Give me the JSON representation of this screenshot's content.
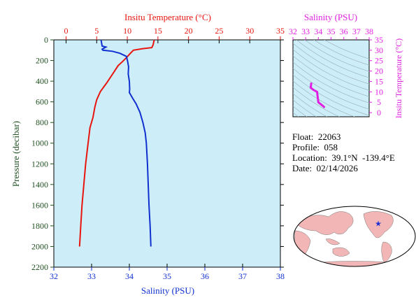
{
  "colors": {
    "temperature": "#e8140f",
    "salinity": "#1030d0",
    "ts": "#e020e0",
    "plot_bg": "#cdeef8",
    "pressure_axis": "#205020",
    "land": "#f2b6b6",
    "ocean": "#ffffff",
    "star": "#2030d0"
  },
  "chart_data": [
    {
      "type": "line",
      "ylabel": "Pressure (decibar)",
      "ylim": [
        2200,
        0
      ],
      "y_ticks": [
        "0",
        "200",
        "400",
        "600",
        "800",
        "1000",
        "1200",
        "1400",
        "1600",
        "1800",
        "2000",
        "2200"
      ],
      "x_top": {
        "label": "Insitu Temperature (°C)",
        "lim": [
          -2,
          35
        ],
        "ticks": [
          "0",
          "5",
          "10",
          "15",
          "20",
          "25",
          "30",
          "35"
        ]
      },
      "x_bottom": {
        "label": "Salinity (PSU)",
        "lim": [
          32,
          38
        ],
        "ticks": [
          "32",
          "33",
          "34",
          "35",
          "36",
          "37",
          "38"
        ]
      },
      "grid": false,
      "series": [
        {
          "axis": "top",
          "points": [
            [
              14.4,
              0
            ],
            [
              14.2,
              50
            ],
            [
              14.0,
              75
            ],
            [
              12.5,
              85
            ],
            [
              11.0,
              100
            ],
            [
              10.5,
              130
            ],
            [
              9.9,
              170
            ],
            [
              9.3,
              205
            ],
            [
              8.5,
              250
            ],
            [
              7.6,
              330
            ],
            [
              6.6,
              420
            ],
            [
              5.6,
              500
            ],
            [
              5.0,
              580
            ],
            [
              4.7,
              650
            ],
            [
              4.4,
              750
            ],
            [
              3.9,
              850
            ],
            [
              3.6,
              1000
            ],
            [
              3.2,
              1200
            ],
            [
              2.9,
              1400
            ],
            [
              2.6,
              1600
            ],
            [
              2.4,
              1800
            ],
            [
              2.2,
              2000
            ]
          ]
        },
        {
          "axis": "bottom",
          "points": [
            [
              33.25,
              0
            ],
            [
              33.28,
              60
            ],
            [
              33.38,
              70
            ],
            [
              33.28,
              90
            ],
            [
              33.3,
              100
            ],
            [
              33.55,
              110
            ],
            [
              33.75,
              130
            ],
            [
              33.92,
              160
            ],
            [
              33.95,
              200
            ],
            [
              33.98,
              260
            ],
            [
              33.97,
              330
            ],
            [
              34.0,
              400
            ],
            [
              34.01,
              480
            ],
            [
              34.0,
              510
            ],
            [
              34.08,
              560
            ],
            [
              34.18,
              620
            ],
            [
              34.28,
              700
            ],
            [
              34.36,
              800
            ],
            [
              34.42,
              900
            ],
            [
              34.45,
              1000
            ],
            [
              34.48,
              1200
            ],
            [
              34.5,
              1400
            ],
            [
              34.52,
              1600
            ],
            [
              34.55,
              1800
            ],
            [
              34.57,
              2000
            ]
          ]
        }
      ]
    },
    {
      "type": "scatter",
      "title": "Salinity (PSU)",
      "ylabel": "Insitu Temperature (°C)",
      "xlim": [
        32,
        38
      ],
      "ylim": [
        -2,
        35
      ],
      "x_ticks": [
        "32",
        "33",
        "34",
        "35",
        "36",
        "37",
        "38"
      ],
      "y_ticks": [
        "0",
        "5",
        "10",
        "15",
        "20",
        "25",
        "30",
        "35"
      ],
      "isopycnal_contours": true,
      "points": [
        [
          33.45,
          14.4
        ],
        [
          33.4,
          12.0
        ],
        [
          33.6,
          11.0
        ],
        [
          33.9,
          10.0
        ],
        [
          33.95,
          7.5
        ],
        [
          34.0,
          5.0
        ],
        [
          34.2,
          4.0
        ],
        [
          34.4,
          3.0
        ],
        [
          34.5,
          2.4
        ]
      ]
    }
  ],
  "info": {
    "float": "Float:  22063",
    "profile": "Profile:  058",
    "location": "Location:  39.1°N  -139.4°E",
    "date": "Date:  02/14/2026"
  },
  "map": {
    "marker_label": "★",
    "marker_lat": 39.1,
    "marker_lon": -139.4
  }
}
